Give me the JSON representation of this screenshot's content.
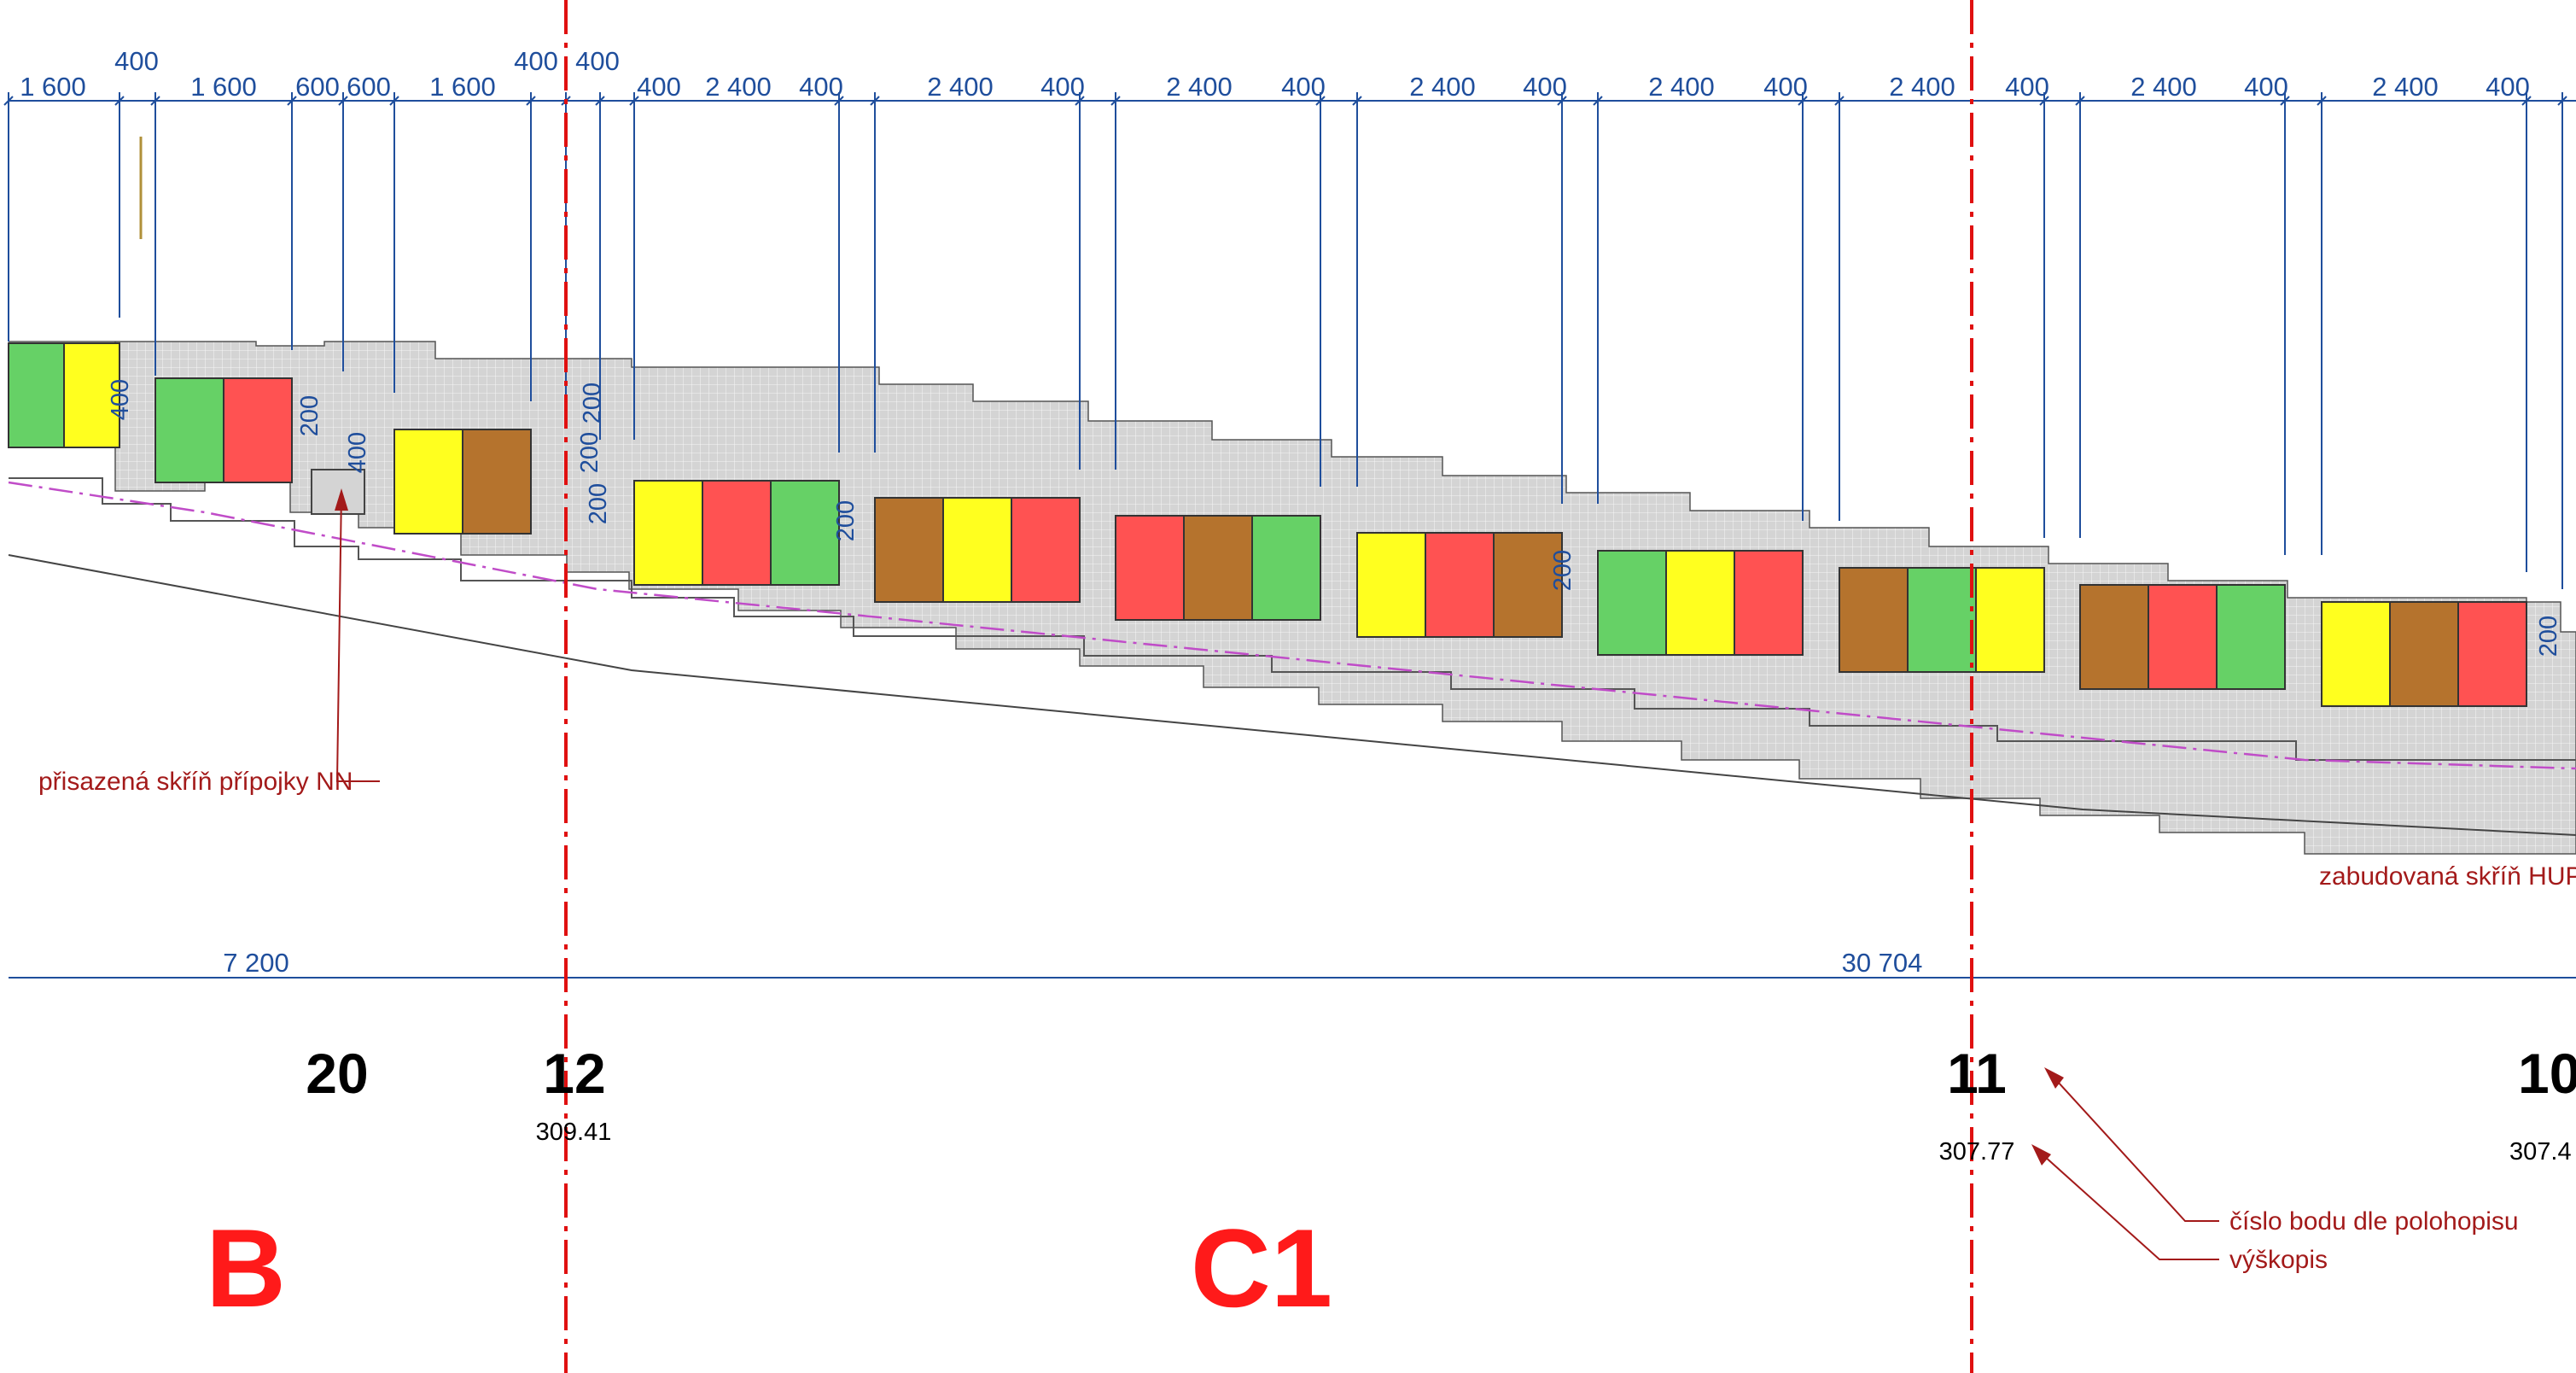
{
  "colors": {
    "yellow": "#ffff1f",
    "green": "#66d166",
    "red": "#ff5252",
    "brown": "#b5732d",
    "paving": "#d4d4d4",
    "dimension": "#1f4e9c",
    "annotation": "#a31a1a",
    "zone": "#ff1a1a",
    "axis": "#e01010",
    "profile": "#c04cc8"
  },
  "top_dimensions": {
    "labels": [
      "1 600",
      "400",
      "1 600",
      "600",
      "600",
      "1 600",
      "400",
      "400",
      "400",
      "2 400",
      "400",
      "2 400",
      "400",
      "2 400",
      "400",
      "2 400",
      "400",
      "2 400",
      "400",
      "2 400",
      "400",
      "2 400",
      "400",
      "2 400",
      "400"
    ]
  },
  "vertical_dimensions": {
    "labels": [
      "400",
      "200",
      "400",
      "200",
      "200",
      "200",
      "200",
      "200",
      "200"
    ]
  },
  "garage_rows": [
    [
      "green",
      "yellow"
    ],
    [
      "green",
      "red"
    ],
    [
      "yellow",
      "brown"
    ],
    [
      "yellow",
      "red",
      "green"
    ],
    [
      "brown",
      "yellow",
      "red"
    ],
    [
      "red",
      "brown",
      "green"
    ],
    [
      "yellow",
      "red",
      "brown"
    ],
    [
      "green",
      "yellow",
      "red"
    ],
    [
      "brown",
      "green",
      "yellow"
    ],
    [
      "brown",
      "red",
      "green"
    ],
    [
      "yellow",
      "brown",
      "red"
    ]
  ],
  "annotations": {
    "nn_box": "přisazená skříň přípojky NN",
    "hup_box": "zabudovaná skříň HUP",
    "point_number_note": "číslo bodu dle polohopisu",
    "elevation_note": "výškopis"
  },
  "bottom_dimensions": {
    "left": "7 200",
    "right": "30 704"
  },
  "survey_points": [
    {
      "number": "20",
      "elevation": ""
    },
    {
      "number": "12",
      "elevation": "309.41"
    },
    {
      "number": "11",
      "elevation": "307.77"
    },
    {
      "number": "10",
      "elevation": "307.4"
    }
  ],
  "zones": {
    "left": "B",
    "right": "C1"
  }
}
